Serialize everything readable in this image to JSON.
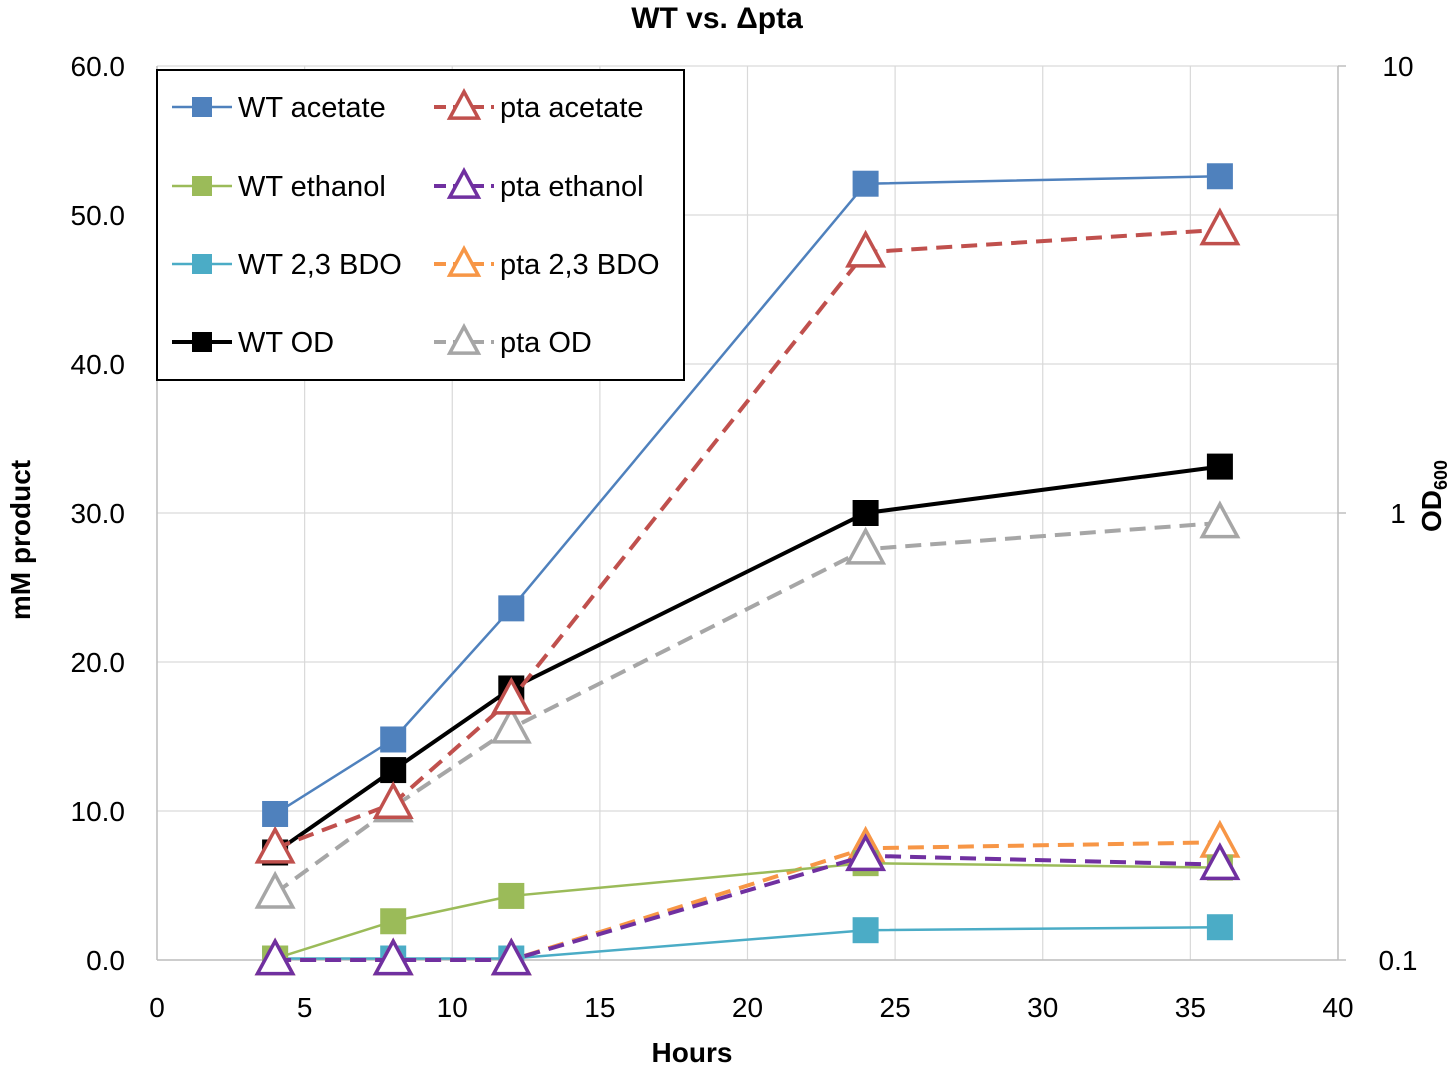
{
  "chart_data": {
    "type": "line",
    "title": "WT vs. Δpta",
    "xlabel": "Hours",
    "ylabel": "mM product",
    "y2label_main": "OD",
    "y2label_sub": "600",
    "xlim": [
      0,
      40
    ],
    "ylim": [
      0,
      60
    ],
    "y2lim": [
      0.1,
      10
    ],
    "y2scale": "log",
    "x_ticks": [
      "0",
      "5",
      "10",
      "15",
      "20",
      "25",
      "30",
      "35",
      "40"
    ],
    "y_ticks": [
      "0.0",
      "10.0",
      "20.0",
      "30.0",
      "40.0",
      "50.0",
      "60.0"
    ],
    "y2_ticks": [
      "0.1",
      "1",
      "10"
    ],
    "grid": true,
    "legend_position": "top-left",
    "x": [
      4,
      8,
      12,
      24,
      36
    ],
    "series": [
      {
        "name": "WT acetate",
        "axis": "left",
        "values": [
          9.8,
          14.8,
          23.6,
          52.1,
          52.6
        ],
        "color": "#4f81bd",
        "marker": "square",
        "dashed": false,
        "filled": true
      },
      {
        "name": "pta acetate",
        "axis": "left",
        "values": [
          7.5,
          10.5,
          17.5,
          47.5,
          49.0
        ],
        "color": "#c0504d",
        "marker": "triangle",
        "dashed": true,
        "filled": false
      },
      {
        "name": "WT ethanol",
        "axis": "left",
        "values": [
          0.1,
          2.6,
          4.3,
          6.5,
          6.2
        ],
        "color": "#9bbb59",
        "marker": "square",
        "dashed": false,
        "filled": true
      },
      {
        "name": "pta ethanol",
        "axis": "left",
        "values": [
          0,
          0,
          0,
          7.0,
          6.4
        ],
        "color": "#7030a0",
        "marker": "triangle",
        "dashed": true,
        "filled": false
      },
      {
        "name": "WT 2,3 BDO",
        "axis": "left",
        "values": [
          0.1,
          0.1,
          0.1,
          2.0,
          2.2
        ],
        "color": "#4bacc6",
        "marker": "square",
        "dashed": false,
        "filled": true
      },
      {
        "name": "pta 2,3 BDO",
        "axis": "left",
        "values": [
          0,
          0,
          0,
          7.5,
          7.9
        ],
        "color": "#f79646",
        "marker": "triangle",
        "dashed": true,
        "filled": false
      },
      {
        "name": "WT OD",
        "axis": "right",
        "values": [
          0.174,
          0.266,
          0.405,
          1.0,
          1.27
        ],
        "color": "#000000",
        "marker": "square",
        "dashed": false,
        "filled": true
      },
      {
        "name": "pta OD",
        "axis": "right",
        "values": [
          0.141,
          0.22,
          0.33,
          0.83,
          0.95
        ],
        "color": "#a6a6a6",
        "marker": "triangle",
        "dashed": true,
        "filled": false
      }
    ]
  }
}
